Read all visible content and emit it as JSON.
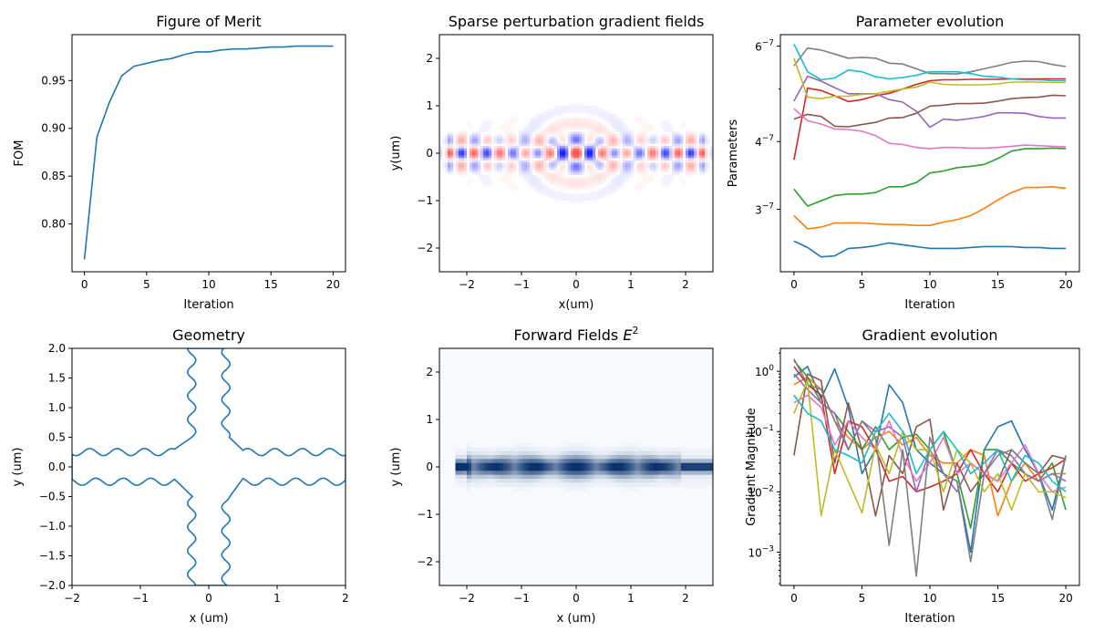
{
  "colors": {
    "series": [
      "#1f77b4",
      "#ff7f0e",
      "#2ca02c",
      "#d62728",
      "#9467bd",
      "#8c564b",
      "#e377c2",
      "#7f7f7f",
      "#bcbd22",
      "#17becf"
    ],
    "blue_map": "#08306b",
    "red_map": "#ff4040"
  },
  "chart_data": [
    {
      "type": "line",
      "title": "Figure of Merit",
      "xlabel": "Iteration",
      "ylabel": "FOM",
      "xlim": [
        -1,
        21
      ],
      "ylim": [
        0.75,
        0.998
      ],
      "xticks": [
        0,
        5,
        10,
        15,
        20
      ],
      "xtick_labels": [
        "0",
        "5",
        "10",
        "15",
        "20"
      ],
      "yticks": [
        0.8,
        0.85,
        0.9,
        0.95
      ],
      "ytick_labels": [
        "0.80",
        "0.85",
        "0.90",
        "0.95"
      ],
      "x": [
        0,
        1,
        2,
        3,
        4,
        5,
        6,
        7,
        8,
        9,
        10,
        11,
        12,
        13,
        14,
        15,
        16,
        17,
        18,
        19,
        20
      ],
      "series": [
        {
          "values": [
            0.763,
            0.891,
            0.927,
            0.955,
            0.965,
            0.968,
            0.971,
            0.973,
            0.977,
            0.98,
            0.98,
            0.982,
            0.983,
            0.983,
            0.984,
            0.985,
            0.985,
            0.986,
            0.986,
            0.986,
            0.986
          ]
        }
      ]
    },
    {
      "type": "heatmap",
      "title": "Sparse perturbation gradient fields",
      "xlabel": "x(um)",
      "ylabel": "y(um)",
      "xlim": [
        -2.5,
        2.5
      ],
      "ylim": [
        -2.5,
        2.5
      ],
      "xticks": [
        -2,
        -1,
        0,
        1,
        2
      ],
      "xtick_labels": [
        "−2",
        "−1",
        "0",
        "1",
        "2"
      ],
      "yticks": [
        -2,
        -1,
        0,
        1,
        2
      ],
      "ytick_labels": [
        "−2",
        "−1",
        "0",
        "1",
        "2"
      ],
      "colormap": "seismic"
    },
    {
      "type": "line",
      "title": "Parameter evolution",
      "xlabel": "Iteration",
      "ylabel": "Parameters",
      "yscale": "log",
      "xlim": [
        -1,
        21
      ],
      "ylim": [
        2.3e-07,
        6.3e-07
      ],
      "xticks": [
        0,
        5,
        10,
        15,
        20
      ],
      "xtick_labels": [
        "0",
        "5",
        "10",
        "15",
        "20"
      ],
      "yticks": [
        3e-07,
        4e-07,
        6e-07
      ],
      "ytick_labels": [
        {
          "mantissa": "3",
          "exp": "−7"
        },
        {
          "mantissa": "4",
          "exp": "−7"
        },
        {
          "mantissa": "6",
          "exp": "−7"
        }
      ],
      "x": [
        0,
        1,
        2,
        3,
        4,
        5,
        6,
        7,
        8,
        9,
        10,
        11,
        12,
        13,
        14,
        15,
        16,
        17,
        18,
        19,
        20
      ],
      "series": [
        {
          "values": [
            2.62e-07,
            2.55e-07,
            2.45e-07,
            2.46e-07,
            2.54e-07,
            2.55e-07,
            2.57e-07,
            2.6e-07,
            2.58e-07,
            2.56e-07,
            2.54e-07,
            2.54e-07,
            2.54e-07,
            2.55e-07,
            2.56e-07,
            2.56e-07,
            2.56e-07,
            2.55e-07,
            2.55e-07,
            2.54e-07,
            2.54e-07
          ]
        },
        {
          "values": [
            2.92e-07,
            2.76e-07,
            2.78e-07,
            2.83e-07,
            2.83e-07,
            2.83e-07,
            2.82e-07,
            2.81e-07,
            2.81e-07,
            2.8e-07,
            2.8e-07,
            2.84e-07,
            2.87e-07,
            2.92e-07,
            3.01e-07,
            3.12e-07,
            3.22e-07,
            3.29e-07,
            3.29e-07,
            3.3e-07,
            3.28e-07
          ]
        },
        {
          "values": [
            3.27e-07,
            3.04e-07,
            3.11e-07,
            3.18e-07,
            3.2e-07,
            3.2e-07,
            3.22e-07,
            3.3e-07,
            3.3e-07,
            3.36e-07,
            3.5e-07,
            3.53e-07,
            3.58e-07,
            3.6e-07,
            3.63e-07,
            3.72e-07,
            3.84e-07,
            3.88e-07,
            3.88e-07,
            3.89e-07,
            3.88e-07
          ]
        },
        {
          "values": [
            3.7e-07,
            5.02e-07,
            4.97e-07,
            4.86e-07,
            4.74e-07,
            4.78e-07,
            4.86e-07,
            4.91e-07,
            5e-07,
            5.1e-07,
            5.18e-07,
            5.2e-07,
            5.2e-07,
            5.21e-07,
            5.21e-07,
            5.21e-07,
            5.22e-07,
            5.22e-07,
            5.22e-07,
            5.22e-07,
            5.22e-07
          ]
        },
        {
          "values": [
            4.75e-07,
            5.28e-07,
            5.17e-07,
            5.03e-07,
            4.9e-07,
            4.9e-07,
            4.9e-07,
            4.78e-07,
            4.73e-07,
            4.55e-07,
            4.25e-07,
            4.4e-07,
            4.38e-07,
            4.41e-07,
            4.45e-07,
            4.52e-07,
            4.52e-07,
            4.51e-07,
            4.45e-07,
            4.42e-07,
            4.42e-07
          ]
        },
        {
          "values": [
            4.4e-07,
            4.49e-07,
            4.45e-07,
            4.27e-07,
            4.26e-07,
            4.3e-07,
            4.34e-07,
            4.42e-07,
            4.43e-07,
            4.51e-07,
            4.65e-07,
            4.67e-07,
            4.7e-07,
            4.7e-07,
            4.71e-07,
            4.75e-07,
            4.8e-07,
            4.82e-07,
            4.83e-07,
            4.87e-07,
            4.86e-07
          ]
        },
        {
          "values": [
            4.6e-07,
            4.37e-07,
            4.31e-07,
            4.22e-07,
            4.21e-07,
            4.18e-07,
            4.1e-07,
            3.97e-07,
            3.95e-07,
            3.9e-07,
            3.88e-07,
            3.9e-07,
            3.9e-07,
            3.89e-07,
            3.89e-07,
            3.9e-07,
            3.92e-07,
            3.94e-07,
            3.93e-07,
            3.92e-07,
            3.91e-07
          ]
        },
        {
          "values": [
            5.52e-07,
            5.95e-07,
            5.9e-07,
            5.8e-07,
            5.7e-07,
            5.72e-07,
            5.7e-07,
            5.58e-07,
            5.56e-07,
            5.45e-07,
            5.34e-07,
            5.34e-07,
            5.33e-07,
            5.38e-07,
            5.45e-07,
            5.52e-07,
            5.6e-07,
            5.63e-07,
            5.62e-07,
            5.55e-07,
            5.5e-07
          ]
        },
        {
          "values": [
            5.7e-07,
            4.83e-07,
            4.8e-07,
            4.85e-07,
            4.85e-07,
            4.89e-07,
            4.9e-07,
            4.95e-07,
            5e-07,
            5.04e-07,
            5.15e-07,
            5.1e-07,
            5.09e-07,
            5.09e-07,
            5.09e-07,
            5.11e-07,
            5.15e-07,
            5.15e-07,
            5.15e-07,
            5.14e-07,
            5.14e-07
          ]
        },
        {
          "values": [
            6.05e-07,
            5.38e-07,
            5.2e-07,
            5.24e-07,
            5.42e-07,
            5.38e-07,
            5.27e-07,
            5.22e-07,
            5.25e-07,
            5.3e-07,
            5.38e-07,
            5.38e-07,
            5.38e-07,
            5.34e-07,
            5.28e-07,
            5.26e-07,
            5.22e-07,
            5.2e-07,
            5.2e-07,
            5.18e-07,
            5.18e-07
          ]
        }
      ]
    },
    {
      "type": "line",
      "title": "Geometry",
      "xlabel": "x (um)",
      "ylabel": "y (um)",
      "xlim": [
        -2,
        2
      ],
      "ylim": [
        -2,
        2
      ],
      "xticks": [
        -2,
        -1,
        0,
        1,
        2
      ],
      "xtick_labels": [
        "−2",
        "−1",
        "0",
        "1",
        "2"
      ],
      "yticks": [
        -2,
        -1.5,
        -1,
        -0.5,
        0,
        0.5,
        1,
        1.5,
        2
      ],
      "ytick_labels": [
        "−2.0",
        "−1.5",
        "−1.0",
        "−0.5",
        "0.0",
        "0.5",
        "1.0",
        "1.5",
        "2.0"
      ],
      "shape": "wavy cross (4 arms, arm half-width 0.25, corner 0.5)",
      "ripple_amplitude": 0.06,
      "ripple_period": 0.4
    },
    {
      "type": "heatmap",
      "title": "Forward Fields",
      "title_math": "E",
      "title_sup": "2",
      "xlabel": "x (um)",
      "ylabel": "y (um)",
      "xlim": [
        -2.5,
        2.5
      ],
      "ylim": [
        -2.5,
        2.5
      ],
      "xticks": [
        -2,
        -1,
        0,
        1,
        2
      ],
      "xtick_labels": [
        "−2",
        "−1",
        "0",
        "1",
        "2"
      ],
      "yticks": [
        -2,
        -1,
        0,
        1,
        2
      ],
      "ytick_labels": [
        "−2",
        "−1",
        "0",
        "1",
        "2"
      ],
      "colormap": "Blues"
    },
    {
      "type": "line",
      "title": "Gradient evolution",
      "xlabel": "Iteration",
      "ylabel": "Gradient Magnitude",
      "yscale": "log",
      "xlim": [
        -1,
        21
      ],
      "ylim": [
        0.00028,
        2.4
      ],
      "xticks": [
        0,
        5,
        10,
        15,
        20
      ],
      "xtick_labels": [
        "0",
        "5",
        "10",
        "15",
        "20"
      ],
      "yticks": [
        0.001,
        0.01,
        0.1,
        1
      ],
      "ytick_labels": [
        {
          "mantissa": "10",
          "exp": "−3"
        },
        {
          "mantissa": "10",
          "exp": "−2"
        },
        {
          "mantissa": "10",
          "exp": "−1"
        },
        {
          "mantissa": "10",
          "exp": "0"
        }
      ],
      "x": [
        0,
        1,
        2,
        3,
        4,
        5,
        6,
        7,
        8,
        9,
        10,
        11,
        12,
        13,
        14,
        15,
        16,
        17,
        18,
        19,
        20
      ],
      "series": [
        {
          "values": [
            0.8,
            1.2,
            0.35,
            1.1,
            0.25,
            0.02,
            0.05,
            0.6,
            0.3,
            0.05,
            0.03,
            0.02,
            0.015,
            0.001,
            0.05,
            0.12,
            0.15,
            0.05,
            0.02,
            0.005,
            0.04
          ]
        },
        {
          "values": [
            0.6,
            0.8,
            0.5,
            0.15,
            0.08,
            0.05,
            0.08,
            0.1,
            0.06,
            0.08,
            0.04,
            0.03,
            0.03,
            0.05,
            0.04,
            0.004,
            0.015,
            0.03,
            0.015,
            0.02,
            0.02
          ]
        },
        {
          "values": [
            1.5,
            0.8,
            0.3,
            0.2,
            0.1,
            0.05,
            0.12,
            0.05,
            0.08,
            0.09,
            0.05,
            0.1,
            0.02,
            0.0025,
            0.05,
            0.05,
            0.03,
            0.02,
            0.015,
            0.03,
            0.005
          ]
        },
        {
          "values": [
            1.2,
            0.6,
            0.4,
            0.02,
            0.15,
            0.12,
            0.05,
            0.015,
            0.018,
            0.01,
            0.012,
            0.015,
            0.02,
            0.05,
            0.02,
            0.01,
            0.03,
            0.015,
            0.02,
            0.025,
            0.035
          ]
        },
        {
          "values": [
            0.9,
            0.5,
            0.3,
            0.2,
            0.05,
            0.15,
            0.1,
            0.12,
            0.08,
            0.01,
            0.05,
            0.02,
            0.01,
            0.03,
            0.02,
            0.05,
            0.04,
            0.02,
            0.015,
            0.02,
            0.015
          ]
        },
        {
          "values": [
            0.04,
            0.9,
            0.7,
            0.03,
            0.3,
            0.05,
            0.004,
            0.04,
            0.02,
            0.12,
            0.16,
            0.005,
            0.03,
            0.01,
            0.02,
            0.015,
            0.05,
            0.03,
            0.02,
            0.04,
            0.035
          ]
        },
        {
          "values": [
            0.3,
            0.4,
            0.25,
            0.06,
            0.15,
            0.08,
            0.05,
            0.15,
            0.04,
            0.015,
            0.03,
            0.08,
            0.02,
            0.03,
            0.02,
            0.015,
            0.03,
            0.06,
            0.02,
            0.01,
            0.012
          ]
        },
        {
          "values": [
            1.6,
            0.6,
            0.5,
            0.15,
            0.05,
            0.15,
            0.08,
            0.0013,
            0.05,
            0.0004,
            0.08,
            0.02,
            0.015,
            0.0007,
            0.02,
            0.04,
            0.05,
            0.03,
            0.02,
            0.0035,
            0.04
          ]
        },
        {
          "values": [
            0.2,
            0.7,
            0.004,
            0.05,
            0.015,
            0.0045,
            0.06,
            0.02,
            0.1,
            0.05,
            0.05,
            0.01,
            0.05,
            0.03,
            0.01,
            0.02,
            0.005,
            0.02,
            0.01,
            0.01,
            0.008
          ]
        },
        {
          "values": [
            0.4,
            0.2,
            0.15,
            0.05,
            0.04,
            0.03,
            0.1,
            0.2,
            0.1,
            0.02,
            0.05,
            0.1,
            0.05,
            0.02,
            0.03,
            0.05,
            0.015,
            0.04,
            0.03,
            0.015,
            0.01
          ]
        }
      ]
    }
  ]
}
